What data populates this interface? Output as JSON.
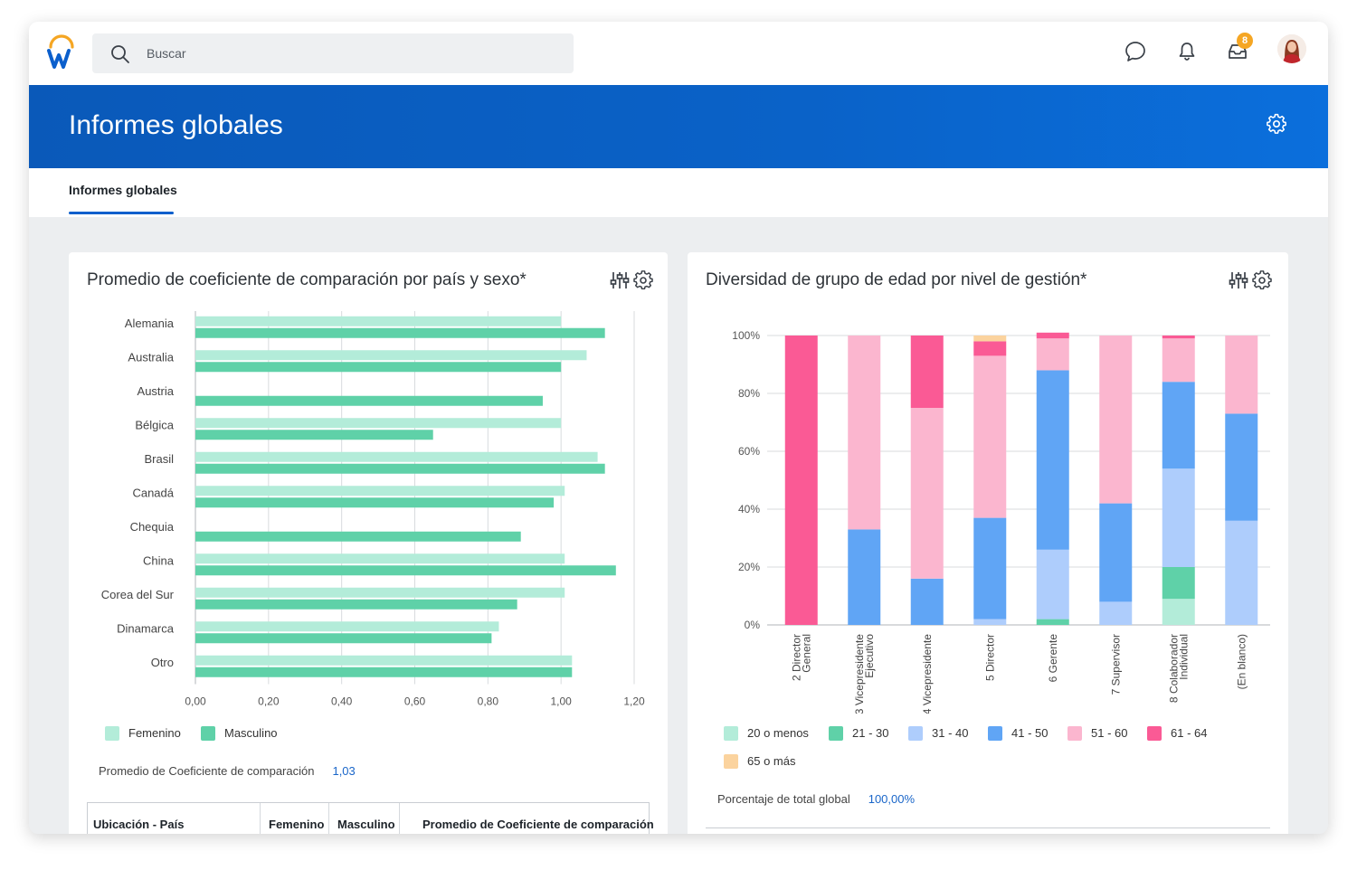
{
  "topbar": {
    "search_placeholder": "Buscar",
    "notification_badge": "8",
    "icons": [
      "chat-icon",
      "bell-icon",
      "inbox-icon"
    ]
  },
  "banner": {
    "title": "Informes globales"
  },
  "tabs": [
    {
      "label": "Informes globales",
      "active": true
    }
  ],
  "left_card": {
    "title": "Promedio de coeficiente de comparación por país y sexo*",
    "summary_label": "Promedio de Coeficiente de comparación",
    "summary_value": "1,03",
    "table_headers": [
      "Ubicación - País",
      "Femenino",
      "Masculino",
      "Promedio de Coeficiente de comparación"
    ]
  },
  "right_card": {
    "title": "Diversidad de grupo de edad por nivel de gestión*",
    "summary_label": "Porcentaje de total global",
    "summary_value": "100,00%"
  },
  "colors": {
    "brand_blue": "#0a62c8",
    "femenino": "#b3ecd9",
    "masculino": "#5fd1a8"
  },
  "chart_data": [
    {
      "type": "bar",
      "orientation": "horizontal",
      "categories": [
        "Alemania",
        "Australia",
        "Austria",
        "Bélgica",
        "Brasil",
        "Canadá",
        "Chequia",
        "China",
        "Corea del Sur",
        "Dinamarca",
        "Otro"
      ],
      "series": [
        {
          "name": "Femenino",
          "color": "#b3ecd9",
          "values": [
            1.0,
            1.07,
            null,
            1.0,
            1.1,
            1.01,
            null,
            1.01,
            1.01,
            0.83,
            1.03
          ]
        },
        {
          "name": "Masculino",
          "color": "#5fd1a8",
          "values": [
            1.12,
            1.0,
            0.95,
            0.65,
            1.12,
            0.98,
            0.89,
            1.15,
            0.88,
            0.81,
            1.03
          ]
        }
      ],
      "xlim": [
        0,
        1.2
      ],
      "xticks": [
        "0,00",
        "0,20",
        "0,40",
        "0,60",
        "0,80",
        "1,00",
        "1,20"
      ],
      "grid": true,
      "legend_position": "bottom-left"
    },
    {
      "type": "bar",
      "stacked": true,
      "categories": [
        "2 Director General",
        "3 Vicepresidente Ejecutivo",
        "4 Vicepresidente",
        "5 Director",
        "6 Gerente",
        "7 Supervisor",
        "8 Colaborador Individual",
        "(En blanco)"
      ],
      "category_lines": [
        [
          "2 Director",
          "General"
        ],
        [
          "3 Vicepresidente",
          "Ejecutivo"
        ],
        [
          "4 Vicepresidente"
        ],
        [
          "5 Director"
        ],
        [
          "6 Gerente"
        ],
        [
          "7 Supervisor"
        ],
        [
          "8 Colaborador",
          "Individual"
        ],
        [
          "(En blanco)"
        ]
      ],
      "series": [
        {
          "name": "20 o menos",
          "color": "#b3ecd9",
          "values": [
            0,
            0,
            0,
            0,
            0,
            0,
            9,
            0
          ]
        },
        {
          "name": "21 - 30",
          "color": "#5fd1a8",
          "values": [
            0,
            0,
            0,
            0,
            2,
            0,
            11,
            0
          ]
        },
        {
          "name": "31 - 40",
          "color": "#aecdfc",
          "values": [
            0,
            0,
            0,
            2,
            24,
            8,
            34,
            36
          ]
        },
        {
          "name": "41 - 50",
          "color": "#60a5f5",
          "values": [
            0,
            33,
            16,
            35,
            62,
            34,
            30,
            37
          ]
        },
        {
          "name": "51 - 60",
          "color": "#fbb6cf",
          "values": [
            0,
            67,
            59,
            56,
            11,
            58,
            15,
            27
          ]
        },
        {
          "name": "61 - 64",
          "color": "#fa5a95",
          "values": [
            100,
            0,
            25,
            5,
            2,
            0,
            1,
            0
          ]
        },
        {
          "name": "65 o más",
          "color": "#fbd39e",
          "values": [
            0,
            0,
            0,
            2,
            0,
            0,
            0,
            0
          ]
        }
      ],
      "ylim": [
        0,
        100
      ],
      "yticks": [
        "0%",
        "20%",
        "40%",
        "60%",
        "80%",
        "100%"
      ],
      "grid": true,
      "legend_position": "bottom-left"
    }
  ]
}
